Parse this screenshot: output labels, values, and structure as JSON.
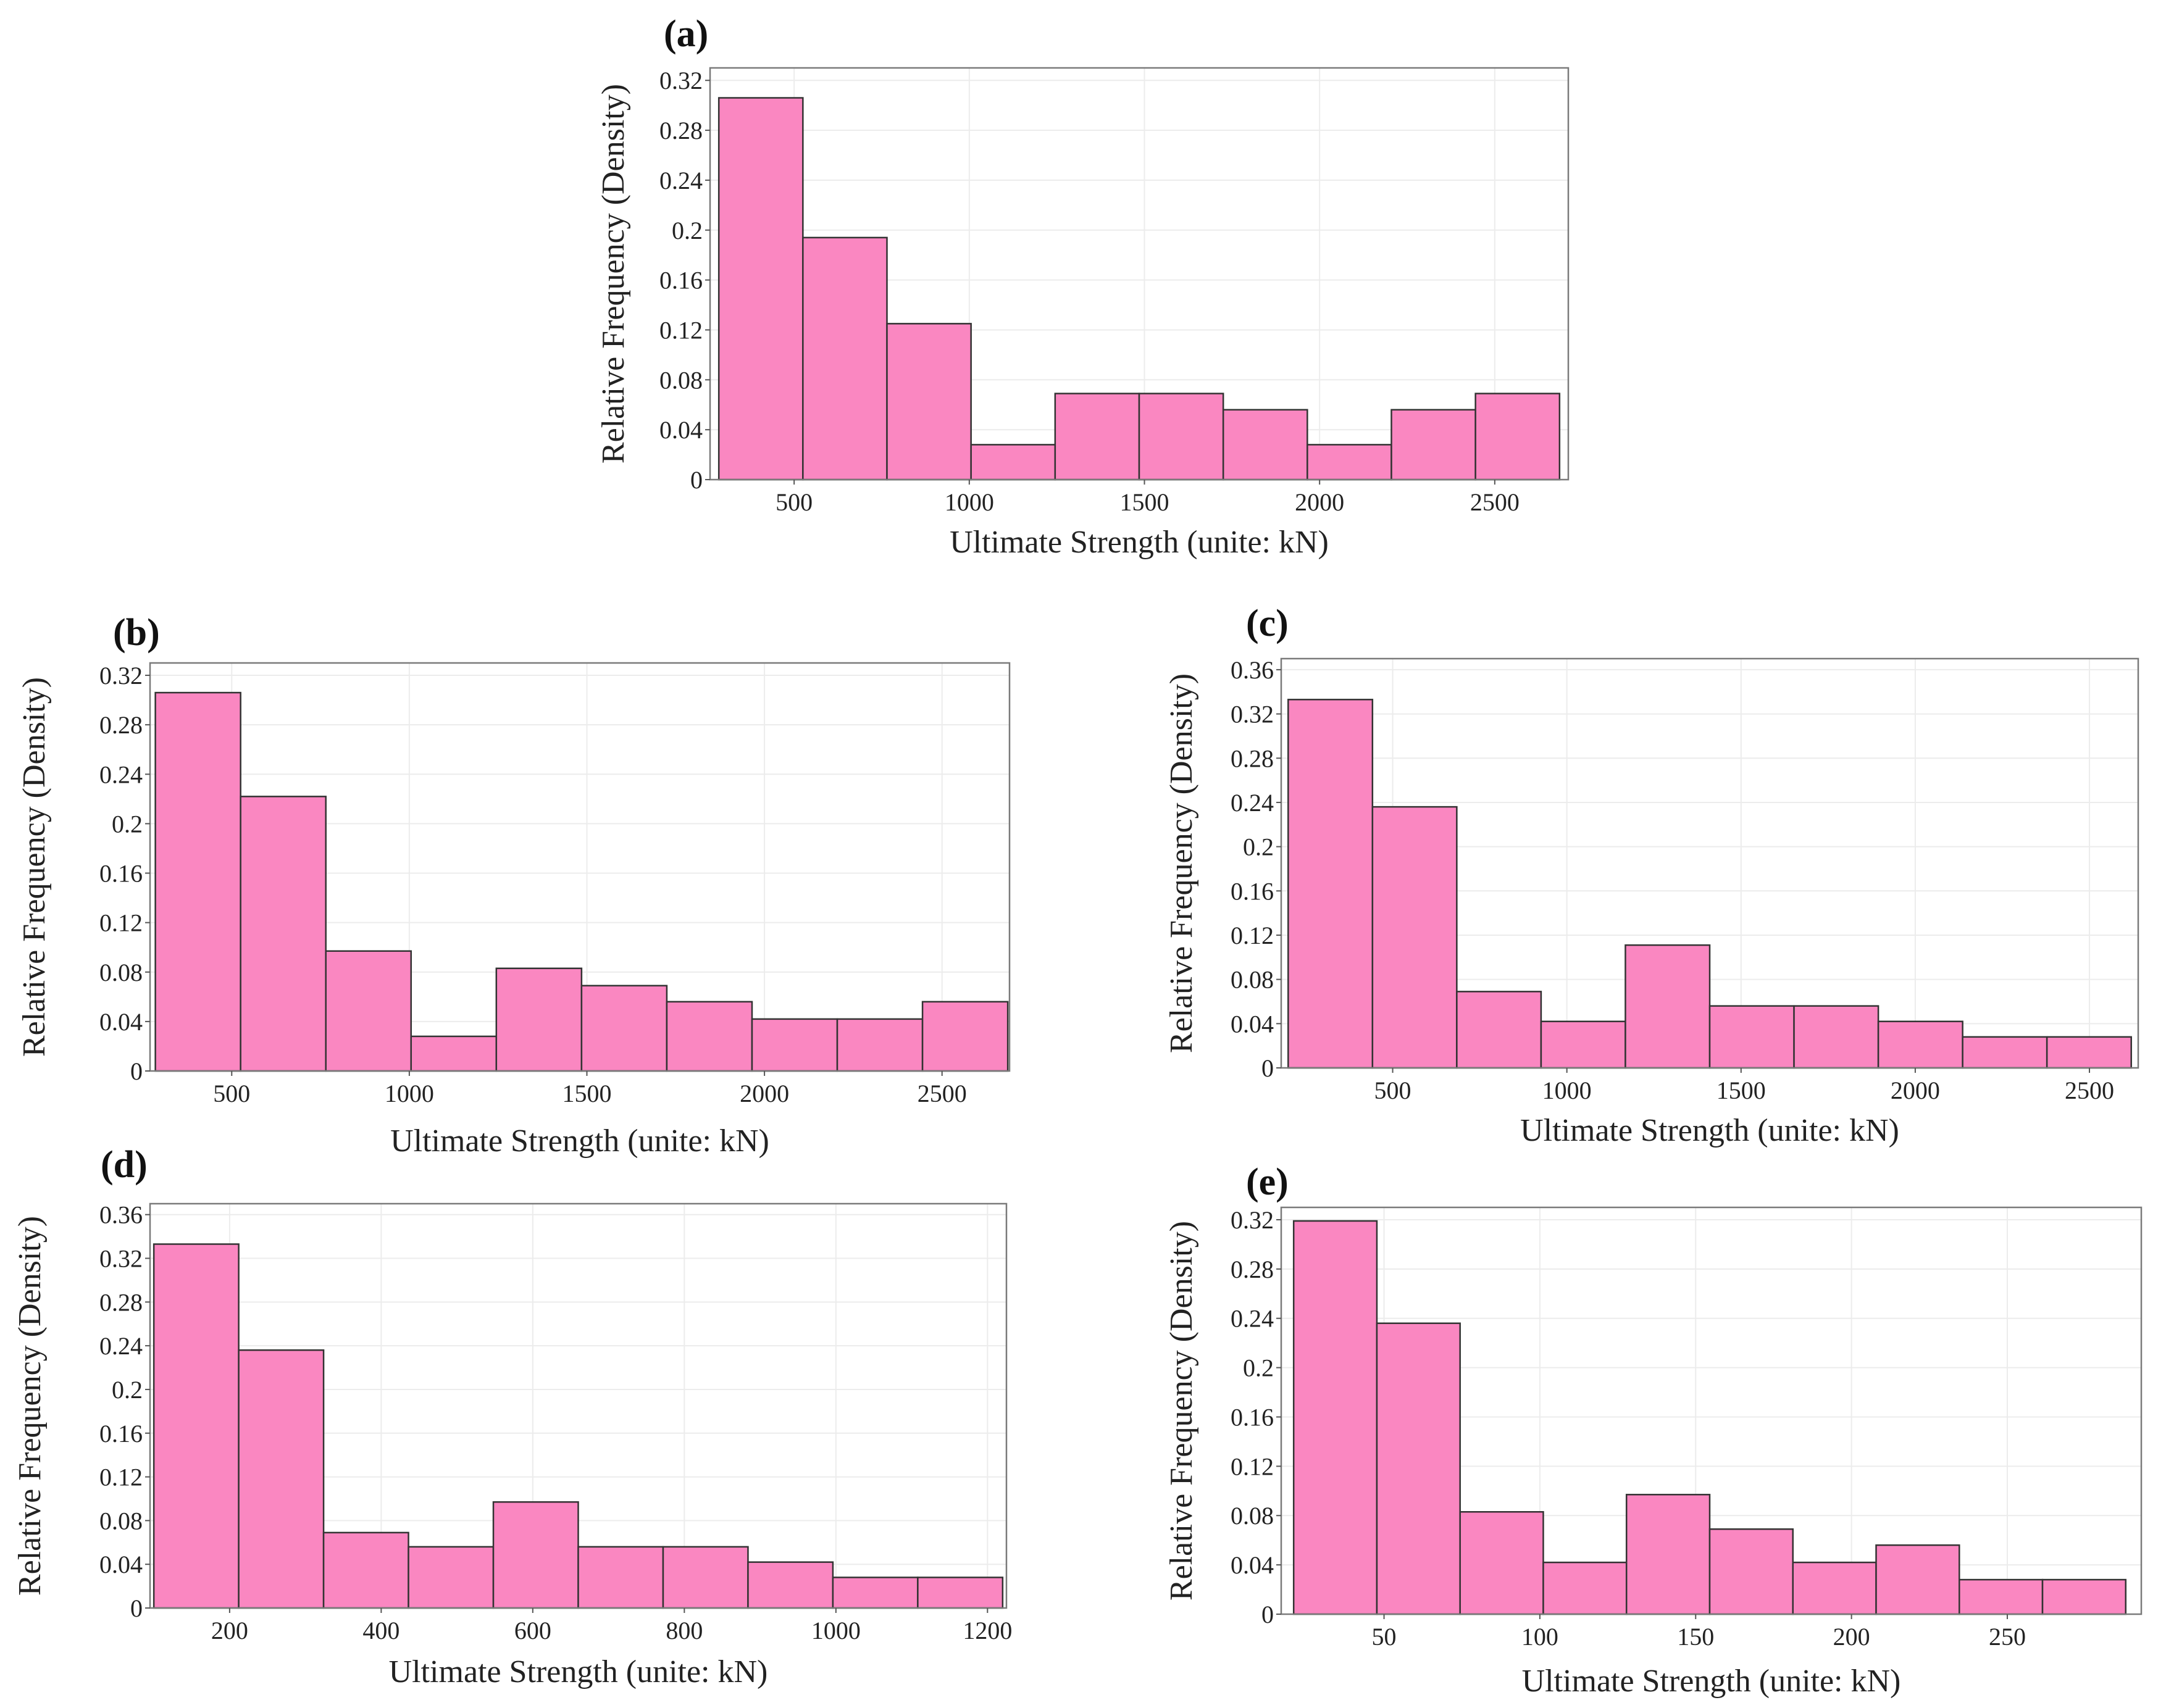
{
  "colors": {
    "bar_fill": "#fa87c1",
    "bar_stroke": "#333333",
    "grid": "#ececec",
    "frame": "#7a7a7a"
  },
  "chart_data": [
    {
      "id": "a",
      "type": "bar",
      "panel_label": "(a)",
      "title": "",
      "xlabel": "Ultimate Strength (unite: kN)",
      "ylabel": "Relative Frequency (Density)",
      "xlim": [
        260,
        2710
      ],
      "ylim": [
        0,
        0.33
      ],
      "xticks": [
        500,
        1000,
        1500,
        2000,
        2500
      ],
      "xtick_labels": [
        "500",
        "1000",
        "1500",
        "2000",
        "2500"
      ],
      "yticks": [
        0,
        0.04,
        0.08,
        0.12,
        0.16,
        0.2,
        0.24,
        0.28,
        0.32
      ],
      "ytick_labels": [
        "0",
        "0.04",
        "0.08",
        "0.12",
        "0.16",
        "0.2",
        "0.24",
        "0.28",
        "0.32"
      ],
      "bin_edges": [
        285,
        525,
        765,
        1005,
        1245,
        1485,
        1725,
        1965,
        2205,
        2445,
        2685
      ],
      "values": [
        0.306,
        0.194,
        0.125,
        0.028,
        0.069,
        0.069,
        0.056,
        0.028,
        0.056,
        0.069
      ],
      "grid": true
    },
    {
      "id": "b",
      "type": "bar",
      "panel_label": "(b)",
      "title": "",
      "xlabel": "Ultimate Strength (unite: kN)",
      "ylabel": "Relative Frequency (Density)",
      "xlim": [
        270,
        2690
      ],
      "ylim": [
        0,
        0.33
      ],
      "xticks": [
        500,
        1000,
        1500,
        2000,
        2500
      ],
      "xtick_labels": [
        "500",
        "1000",
        "1500",
        "2000",
        "2500"
      ],
      "yticks": [
        0,
        0.04,
        0.08,
        0.12,
        0.16,
        0.2,
        0.24,
        0.28,
        0.32
      ],
      "ytick_labels": [
        "0",
        "0.04",
        "0.08",
        "0.12",
        "0.16",
        "0.2",
        "0.24",
        "0.28",
        "0.32"
      ],
      "bin_edges": [
        285,
        525,
        765,
        1005,
        1245,
        1485,
        1725,
        1965,
        2205,
        2445,
        2685
      ],
      "values": [
        0.306,
        0.222,
        0.097,
        0.028,
        0.083,
        0.069,
        0.056,
        0.042,
        0.042,
        0.056
      ],
      "grid": true
    },
    {
      "id": "c",
      "type": "bar",
      "panel_label": "(c)",
      "title": "",
      "xlabel": "Ultimate Strength (unite: kN)",
      "ylabel": "Relative Frequency (Density)",
      "xlim": [
        180,
        2640
      ],
      "ylim": [
        0,
        0.37
      ],
      "xticks": [
        500,
        1000,
        1500,
        2000,
        2500
      ],
      "xtick_labels": [
        "500",
        "1000",
        "1500",
        "2000",
        "2500"
      ],
      "yticks": [
        0,
        0.04,
        0.08,
        0.12,
        0.16,
        0.2,
        0.24,
        0.28,
        0.32,
        0.36
      ],
      "ytick_labels": [
        "0",
        "0.04",
        "0.08",
        "0.12",
        "0.16",
        "0.2",
        "0.24",
        "0.28",
        "0.32",
        "0.36"
      ],
      "bin_edges": [
        200,
        442,
        684,
        926,
        1168,
        1410,
        1652,
        1894,
        2136,
        2378,
        2620
      ],
      "values": [
        0.333,
        0.236,
        0.069,
        0.042,
        0.111,
        0.056,
        0.056,
        0.042,
        0.028,
        0.028
      ],
      "grid": true
    },
    {
      "id": "d",
      "type": "bar",
      "panel_label": "(d)",
      "title": "",
      "xlabel": "Ultimate Strength (unite: kN)",
      "ylabel": "Relative Frequency (Density)",
      "xlim": [
        95,
        1225
      ],
      "ylim": [
        0,
        0.37
      ],
      "xticks": [
        200,
        400,
        600,
        800,
        1000,
        1200
      ],
      "xtick_labels": [
        "200",
        "400",
        "600",
        "800",
        "1000",
        "1200"
      ],
      "yticks": [
        0,
        0.04,
        0.08,
        0.12,
        0.16,
        0.2,
        0.24,
        0.28,
        0.32,
        0.36
      ],
      "ytick_labels": [
        "0",
        "0.04",
        "0.08",
        "0.12",
        "0.16",
        "0.2",
        "0.24",
        "0.28",
        "0.32",
        "0.36"
      ],
      "bin_edges": [
        100,
        212,
        324,
        436,
        548,
        660,
        772,
        884,
        996,
        1108,
        1220
      ],
      "values": [
        0.333,
        0.236,
        0.069,
        0.056,
        0.097,
        0.056,
        0.056,
        0.042,
        0.028,
        0.028
      ],
      "grid": true
    },
    {
      "id": "e",
      "type": "bar",
      "panel_label": "(e)",
      "title": "",
      "xlabel": "Ultimate Strength (unite: kN)",
      "ylabel": "Relative Frequency (Density)",
      "xlim": [
        17,
        293
      ],
      "ylim": [
        0,
        0.33
      ],
      "xticks": [
        50,
        100,
        150,
        200,
        250
      ],
      "xtick_labels": [
        "50",
        "100",
        "150",
        "200",
        "250"
      ],
      "yticks": [
        0,
        0.04,
        0.08,
        0.12,
        0.16,
        0.2,
        0.24,
        0.28,
        0.32
      ],
      "ytick_labels": [
        "0",
        "0.04",
        "0.08",
        "0.12",
        "0.16",
        "0.2",
        "0.24",
        "0.28",
        "0.32"
      ],
      "bin_edges": [
        21,
        47.7,
        74.4,
        101.1,
        127.8,
        154.5,
        181.2,
        207.9,
        234.6,
        261.3,
        288
      ],
      "values": [
        0.319,
        0.236,
        0.083,
        0.042,
        0.097,
        0.069,
        0.042,
        0.056,
        0.028,
        0.028
      ],
      "grid": true
    }
  ]
}
